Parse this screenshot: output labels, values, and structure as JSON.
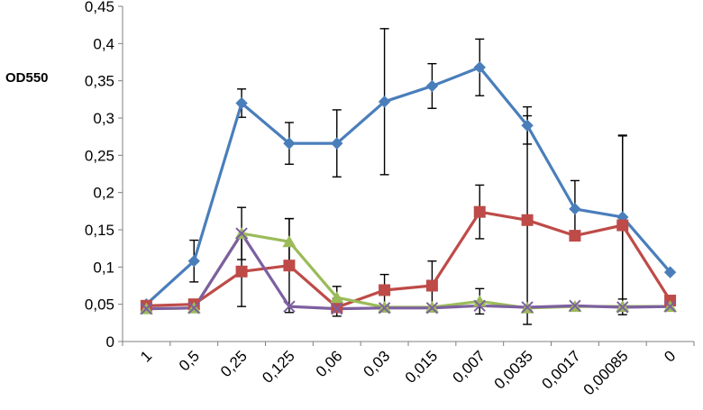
{
  "chart_data": {
    "type": "line",
    "title": "",
    "xlabel": "",
    "ylabel": "OD550",
    "ylim": [
      0,
      0.45
    ],
    "y_ticks": [
      "0",
      "0,05",
      "0,1",
      "0,15",
      "0,2",
      "0,25",
      "0,3",
      "0,35",
      "0,4",
      "0,45"
    ],
    "categories": [
      "1",
      "0,5",
      "0,25",
      "0,125",
      "0,06",
      "0,03",
      "0,015",
      "0,007",
      "0,0035",
      "0,0017",
      "0,00085",
      "0"
    ],
    "grid": false,
    "legend": "none",
    "series": [
      {
        "color": "#4a7ebb",
        "marker": "diamond",
        "values": [
          0.05,
          0.108,
          0.32,
          0.266,
          0.266,
          0.322,
          0.343,
          0.368,
          0.29,
          0.178,
          0.167,
          0.093
        ],
        "error": [
          0,
          0.028,
          0.019,
          0.028,
          0.045,
          0.098,
          0.03,
          0.038,
          0.025,
          0.038,
          0.11,
          0
        ]
      },
      {
        "color": "#be4b48",
        "marker": "square",
        "values": [
          0.048,
          0.05,
          0.094,
          0.102,
          0.046,
          0.069,
          0.075,
          0.174,
          0.163,
          0.142,
          0.156,
          0.055
        ],
        "error": [
          0,
          0,
          0.047,
          0.063,
          0.012,
          0.021,
          0.033,
          0.036,
          0.14,
          0,
          0.12,
          0
        ]
      },
      {
        "color": "#9bbb59",
        "marker": "triangle",
        "values": [
          0.044,
          0.045,
          0.145,
          0.134,
          0.059,
          0.046,
          0.046,
          0.054,
          0.045,
          0.047,
          0.047,
          0.047
        ],
        "error": [
          0,
          0,
          0.035,
          0.031,
          0.015,
          0,
          0,
          0.017,
          0,
          0,
          0,
          0
        ]
      },
      {
        "color": "#7d60a0",
        "marker": "x",
        "values": [
          0.044,
          0.045,
          0.145,
          0.047,
          0.044,
          0.045,
          0.045,
          0.048,
          0.046,
          0.048,
          0.046,
          0.047
        ],
        "error": [
          0,
          0,
          0,
          0,
          0,
          0,
          0,
          0,
          0,
          0,
          0,
          0
        ]
      }
    ]
  }
}
